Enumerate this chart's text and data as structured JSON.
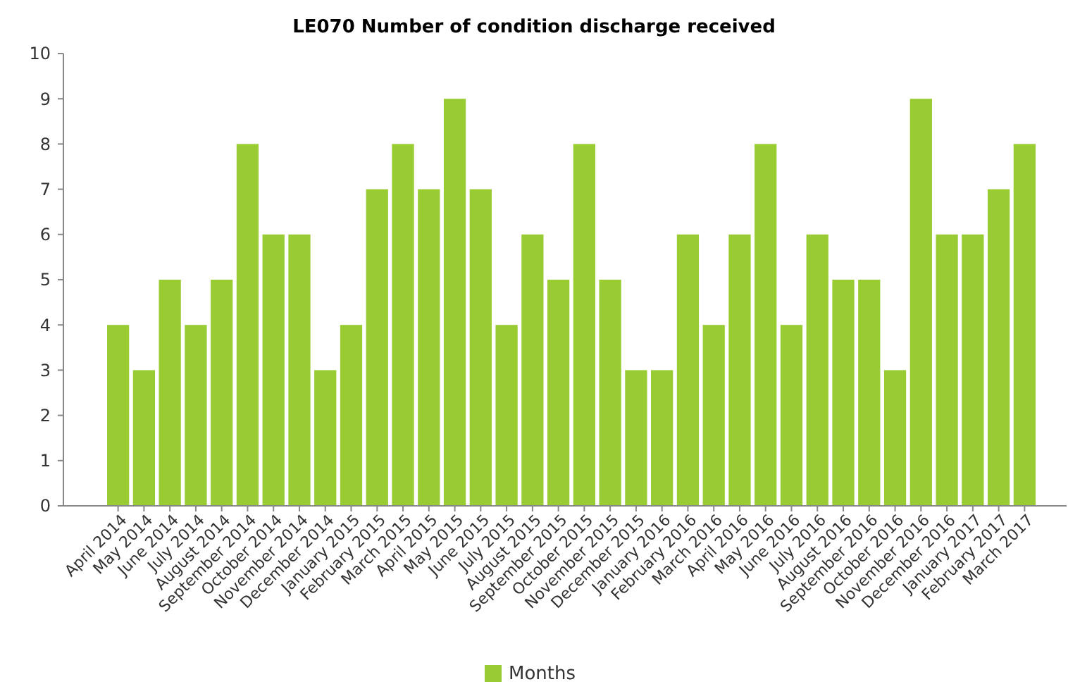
{
  "chart_data": {
    "type": "bar",
    "title": "LE070 Number of condition discharge received",
    "categories": [
      "April 2014",
      "May 2014",
      "June 2014",
      "July 2014",
      "August 2014",
      "September 2014",
      "October 2014",
      "November 2014",
      "December 2014",
      "January 2015",
      "February 2015",
      "March 2015",
      "April 2015",
      "May 2015",
      "June 2015",
      "July 2015",
      "August 2015",
      "September 2015",
      "October 2015",
      "November 2015",
      "December 2015",
      "January 2016",
      "February 2016",
      "March 2016",
      "April 2016",
      "May 2016",
      "June 2016",
      "July 2016",
      "August 2016",
      "September 2016",
      "October 2016",
      "November 2016",
      "December 2016",
      "January 2017",
      "February 2017",
      "March 2017"
    ],
    "series": [
      {
        "name": "Months",
        "color": "#99cc33",
        "values": [
          4,
          3,
          5,
          4,
          5,
          8,
          6,
          6,
          3,
          4,
          7,
          8,
          7,
          9,
          7,
          4,
          6,
          5,
          8,
          5,
          3,
          3,
          6,
          4,
          6,
          8,
          4,
          6,
          5,
          5,
          3,
          9,
          6,
          6,
          7,
          8
        ]
      }
    ],
    "ylim": [
      0,
      10
    ],
    "yticks": [
      0,
      1,
      2,
      3,
      4,
      5,
      6,
      7,
      8,
      9,
      10
    ],
    "grid": false,
    "legend": "bottom"
  }
}
